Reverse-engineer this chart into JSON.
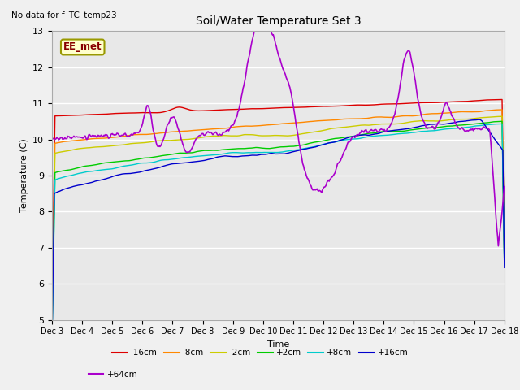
{
  "title": "Soil/Water Temperature Set 3",
  "xlabel": "Time",
  "ylabel": "Temperature (C)",
  "no_data_text": "No data for f_TC_temp23",
  "annotation_text": "EE_met",
  "ylim": [
    5.0,
    13.0
  ],
  "yticks": [
    5.0,
    6.0,
    7.0,
    8.0,
    9.0,
    10.0,
    11.0,
    12.0,
    13.0
  ],
  "xtick_labels": [
    "Dec 3",
    "Dec 4",
    "Dec 5",
    "Dec 6",
    "Dec 7",
    "Dec 8",
    "Dec 9",
    "Dec 10",
    "Dec 11",
    "Dec 12",
    "Dec 13",
    "Dec 14",
    "Dec 15",
    "Dec 16",
    "Dec 17",
    "Dec 18"
  ],
  "fig_bg_color": "#f0f0f0",
  "plot_bg_color": "#e8e8e8",
  "grid_color": "#ffffff",
  "series": [
    {
      "label": "-16cm",
      "color": "#dd0000"
    },
    {
      "label": "-8cm",
      "color": "#ff8800"
    },
    {
      "label": "-2cm",
      "color": "#cccc00"
    },
    {
      "label": "+2cm",
      "color": "#00cc00"
    },
    {
      "label": "+8cm",
      "color": "#00cccc"
    },
    {
      "label": "+16cm",
      "color": "#0000cc"
    },
    {
      "label": "+64cm",
      "color": "#aa00cc"
    }
  ]
}
